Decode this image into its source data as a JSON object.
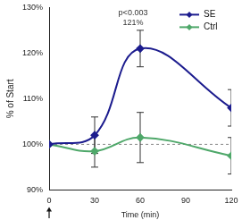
{
  "chart_data": {
    "type": "line",
    "x_label": "Time (min)",
    "y_label": "% of Start",
    "xlim": [
      0,
      120
    ],
    "xticks": [
      0,
      30,
      60,
      90,
      120
    ],
    "ylim": [
      90,
      130
    ],
    "yticks": [
      {
        "value": 90,
        "label": "90%"
      },
      {
        "value": 100,
        "label": "100%"
      },
      {
        "value": 110,
        "label": "110%"
      },
      {
        "value": 120,
        "label": "120%"
      },
      {
        "value": 130,
        "label": "130%"
      }
    ],
    "grid": false,
    "legend": "upper right",
    "reference_line": 100,
    "series": [
      {
        "name": "SE",
        "color": "#1c1c8e",
        "marker": "diamond",
        "line_style": "solid",
        "x": [
          0,
          30,
          60,
          120
        ],
        "values": [
          100,
          102,
          121,
          108
        ],
        "errors": [
          0,
          4,
          4,
          4
        ]
      },
      {
        "name": "Ctrl",
        "color": "#4fa86a",
        "marker": "diamond",
        "line_style": "solid",
        "x": [
          0,
          30,
          60,
          120
        ],
        "values": [
          100,
          98.5,
          101.5,
          97.5
        ],
        "errors": [
          0,
          3.5,
          5.5,
          4
        ]
      }
    ],
    "annotations": [
      {
        "series": "SE",
        "x": 60,
        "lines": [
          "p<0.003",
          "121%"
        ]
      }
    ]
  }
}
